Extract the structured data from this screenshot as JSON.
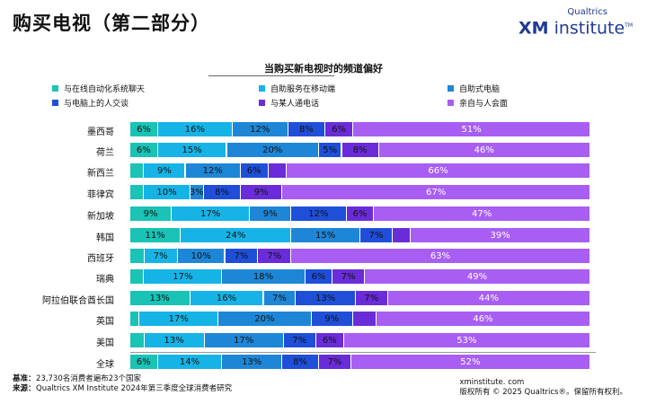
{
  "header": {
    "title": "购买电视（第二部分）",
    "brand_small": "Qualtrics",
    "brand_xm": "XM",
    "brand_rest": " institute",
    "brand_tm": "TM"
  },
  "footer": {
    "base_key": "基准：",
    "base_text": "23,730名消费者遍布23个国家",
    "source_key": "来源：",
    "source_text": "Qualtrics XM Institute 2024年第三季度全球消费者研究",
    "site": "xminstitute. com",
    "copyright": "版权所有 © 2025 Qualtrics®。保留所有权利。"
  },
  "colors": {
    "teal": "#19c3b5",
    "cyan": "#16b4e6",
    "blue": "#1e86d6",
    "navy": "#1f4fd9",
    "indigo": "#6a2cd8",
    "purple": "#a85ef3"
  },
  "chart_data": {
    "type": "bar",
    "orientation": "horizontal",
    "stacked": true,
    "title": "当购买新电视时的频道偏好",
    "legend_position": "top",
    "categories": [
      "墨西哥",
      "荷兰",
      "新西兰",
      "菲律宾",
      "新加坡",
      "韩国",
      "西班牙",
      "瑞典",
      "阿拉伯联合酋长国",
      "英国",
      "美国",
      "全球"
    ],
    "series": [
      {
        "name": "与在线自动化系统聊天",
        "color": "#19c3b5",
        "values": [
          6,
          6,
          3,
          3,
          9,
          11,
          3,
          3,
          13,
          2,
          3,
          6
        ]
      },
      {
        "name": "自助服务在移动端",
        "color": "#16b4e6",
        "values": [
          16,
          15,
          9,
          10,
          17,
          24,
          7,
          17,
          16,
          17,
          13,
          14
        ]
      },
      {
        "name": "自助式电脑",
        "color": "#1e86d6",
        "values": [
          12,
          20,
          12,
          3,
          9,
          15,
          10,
          18,
          7,
          20,
          17,
          13
        ]
      },
      {
        "name": "与电脑上的人交谈",
        "color": "#1f4fd9",
        "values": [
          8,
          5,
          6,
          8,
          12,
          7,
          7,
          6,
          13,
          9,
          7,
          8
        ]
      },
      {
        "name": "与某人通电话",
        "color": "#6a2cd8",
        "values": [
          6,
          8,
          4,
          9,
          6,
          4,
          7,
          7,
          7,
          5,
          6,
          7
        ]
      },
      {
        "name": "亲自与人会面",
        "color": "#a85ef3",
        "values": [
          51,
          46,
          66,
          67,
          47,
          39,
          63,
          49,
          44,
          46,
          53,
          52
        ]
      }
    ],
    "labels": [
      [
        "6%",
        "16%",
        "12%",
        "8%",
        "6%",
        "51%"
      ],
      [
        "6%",
        "15%",
        "20%",
        "5%",
        "8%",
        "46%"
      ],
      [
        "",
        "9%",
        "12%",
        "6%",
        "",
        "66%"
      ],
      [
        "",
        "10%",
        "3%",
        "8%",
        "9%",
        "67%"
      ],
      [
        "9%",
        "17%",
        "9%",
        "12%",
        "6%",
        "47%"
      ],
      [
        "11%",
        "24%",
        "15%",
        "7%",
        "",
        "39%"
      ],
      [
        "",
        "7%",
        "10%",
        "7%",
        "7%",
        "63%"
      ],
      [
        "",
        "17%",
        "18%",
        "6%",
        "7%",
        "49%"
      ],
      [
        "13%",
        "16%",
        "7%",
        "13%",
        "7%",
        "44%"
      ],
      [
        "",
        "17%",
        "20%",
        "9%",
        "",
        "46%"
      ],
      [
        "",
        "13%",
        "17%",
        "7%",
        "6%",
        "53%"
      ],
      [
        "6%",
        "14%",
        "13%",
        "8%",
        "7%",
        "52%"
      ]
    ],
    "xlim": [
      0,
      100
    ]
  }
}
